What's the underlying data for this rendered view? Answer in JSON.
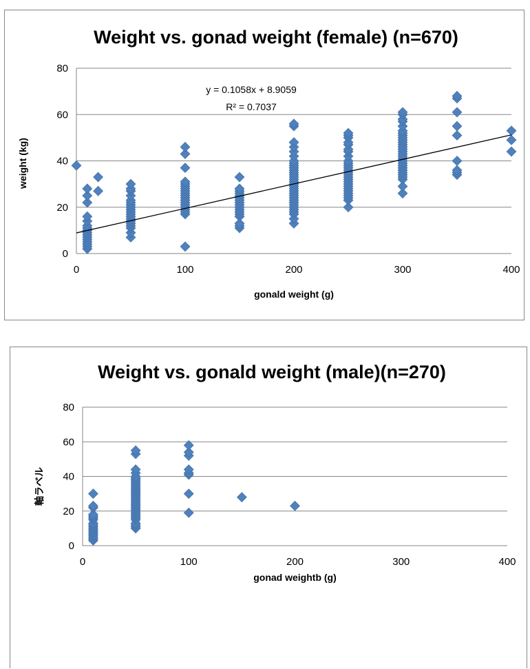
{
  "charts": [
    {
      "type": "scatter",
      "title": "Weight vs. gonad weight (female) (n=670)",
      "xlabel": "gonald weight (g)",
      "ylabel": "weight (kg)",
      "xlim": [
        0,
        400
      ],
      "ylim": [
        0,
        80
      ],
      "xticks": [
        0,
        100,
        200,
        300,
        400
      ],
      "yticks": [
        0,
        20,
        40,
        60,
        80
      ],
      "grid": "horizontal",
      "marker": "diamond",
      "color": "#4f81bd",
      "trendline": {
        "equation": "y = 0.1058x + 8.9059",
        "r_squared": "R² = 0.7037",
        "slope": 0.1058,
        "intercept": 8.9059,
        "x_range": [
          0,
          400
        ]
      },
      "points": [
        [
          0,
          38
        ],
        [
          10,
          2
        ],
        [
          10,
          3
        ],
        [
          10,
          4
        ],
        [
          10,
          5
        ],
        [
          10,
          6
        ],
        [
          10,
          7
        ],
        [
          10,
          8
        ],
        [
          10,
          9
        ],
        [
          10,
          10
        ],
        [
          10,
          11
        ],
        [
          10,
          12
        ],
        [
          10,
          14
        ],
        [
          10,
          16
        ],
        [
          10,
          22
        ],
        [
          10,
          25
        ],
        [
          10,
          28
        ],
        [
          20,
          27
        ],
        [
          20,
          33
        ],
        [
          50,
          7
        ],
        [
          50,
          9
        ],
        [
          50,
          11
        ],
        [
          50,
          12
        ],
        [
          50,
          13
        ],
        [
          50,
          14
        ],
        [
          50,
          15
        ],
        [
          50,
          16
        ],
        [
          50,
          17
        ],
        [
          50,
          18
        ],
        [
          50,
          19
        ],
        [
          50,
          20
        ],
        [
          50,
          21
        ],
        [
          50,
          22
        ],
        [
          50,
          23
        ],
        [
          50,
          25
        ],
        [
          50,
          27
        ],
        [
          50,
          28
        ],
        [
          50,
          30
        ],
        [
          100,
          3
        ],
        [
          100,
          17
        ],
        [
          100,
          18
        ],
        [
          100,
          19
        ],
        [
          100,
          20
        ],
        [
          100,
          21
        ],
        [
          100,
          22
        ],
        [
          100,
          23
        ],
        [
          100,
          24
        ],
        [
          100,
          25
        ],
        [
          100,
          26
        ],
        [
          100,
          27
        ],
        [
          100,
          28
        ],
        [
          100,
          29
        ],
        [
          100,
          30
        ],
        [
          100,
          31
        ],
        [
          100,
          37
        ],
        [
          100,
          43
        ],
        [
          100,
          46
        ],
        [
          150,
          11
        ],
        [
          150,
          12
        ],
        [
          150,
          13
        ],
        [
          150,
          16
        ],
        [
          150,
          17
        ],
        [
          150,
          18
        ],
        [
          150,
          19
        ],
        [
          150,
          20
        ],
        [
          150,
          21
        ],
        [
          150,
          22
        ],
        [
          150,
          23
        ],
        [
          150,
          24
        ],
        [
          150,
          25
        ],
        [
          150,
          26
        ],
        [
          150,
          27
        ],
        [
          150,
          28
        ],
        [
          150,
          33
        ],
        [
          200,
          13
        ],
        [
          200,
          15
        ],
        [
          200,
          17
        ],
        [
          200,
          18
        ],
        [
          200,
          19
        ],
        [
          200,
          20
        ],
        [
          200,
          21
        ],
        [
          200,
          22
        ],
        [
          200,
          23
        ],
        [
          200,
          24
        ],
        [
          200,
          25
        ],
        [
          200,
          26
        ],
        [
          200,
          27
        ],
        [
          200,
          28
        ],
        [
          200,
          29
        ],
        [
          200,
          30
        ],
        [
          200,
          31
        ],
        [
          200,
          32
        ],
        [
          200,
          33
        ],
        [
          200,
          34
        ],
        [
          200,
          35
        ],
        [
          200,
          36
        ],
        [
          200,
          37
        ],
        [
          200,
          38
        ],
        [
          200,
          39
        ],
        [
          200,
          40
        ],
        [
          200,
          42
        ],
        [
          200,
          44
        ],
        [
          200,
          46
        ],
        [
          200,
          48
        ],
        [
          200,
          55
        ],
        [
          200,
          56
        ],
        [
          250,
          20
        ],
        [
          250,
          23
        ],
        [
          250,
          24
        ],
        [
          250,
          25
        ],
        [
          250,
          26
        ],
        [
          250,
          27
        ],
        [
          250,
          28
        ],
        [
          250,
          29
        ],
        [
          250,
          30
        ],
        [
          250,
          31
        ],
        [
          250,
          32
        ],
        [
          250,
          33
        ],
        [
          250,
          34
        ],
        [
          250,
          35
        ],
        [
          250,
          36
        ],
        [
          250,
          37
        ],
        [
          250,
          38
        ],
        [
          250,
          39
        ],
        [
          250,
          40
        ],
        [
          250,
          42
        ],
        [
          250,
          44
        ],
        [
          250,
          45
        ],
        [
          250,
          47
        ],
        [
          250,
          48
        ],
        [
          250,
          50
        ],
        [
          250,
          51
        ],
        [
          250,
          52
        ],
        [
          300,
          26
        ],
        [
          300,
          29
        ],
        [
          300,
          32
        ],
        [
          300,
          33
        ],
        [
          300,
          34
        ],
        [
          300,
          35
        ],
        [
          300,
          36
        ],
        [
          300,
          37
        ],
        [
          300,
          38
        ],
        [
          300,
          39
        ],
        [
          300,
          40
        ],
        [
          300,
          41
        ],
        [
          300,
          42
        ],
        [
          300,
          43
        ],
        [
          300,
          44
        ],
        [
          300,
          45
        ],
        [
          300,
          46
        ],
        [
          300,
          47
        ],
        [
          300,
          48
        ],
        [
          300,
          49
        ],
        [
          300,
          50
        ],
        [
          300,
          51
        ],
        [
          300,
          52
        ],
        [
          300,
          53
        ],
        [
          300,
          55
        ],
        [
          300,
          57
        ],
        [
          300,
          58
        ],
        [
          300,
          60
        ],
        [
          300,
          61
        ],
        [
          350,
          34
        ],
        [
          350,
          35
        ],
        [
          350,
          36
        ],
        [
          350,
          40
        ],
        [
          350,
          51
        ],
        [
          350,
          55
        ],
        [
          350,
          61
        ],
        [
          350,
          67
        ],
        [
          350,
          68
        ],
        [
          400,
          44
        ],
        [
          400,
          49
        ],
        [
          400,
          53
        ]
      ]
    },
    {
      "type": "scatter",
      "title": "Weight vs. gonald weight (male)(n=270)",
      "xlabel": "gonad weightb (g)",
      "ylabel": "軸ラベル",
      "xlim": [
        0,
        400
      ],
      "ylim": [
        0,
        80
      ],
      "xticks": [
        0,
        100,
        200,
        300,
        400
      ],
      "yticks": [
        0,
        20,
        40,
        60,
        80
      ],
      "grid": "horizontal",
      "marker": "diamond",
      "color": "#4f81bd",
      "points": [
        [
          10,
          3
        ],
        [
          10,
          4
        ],
        [
          10,
          5
        ],
        [
          10,
          6
        ],
        [
          10,
          7
        ],
        [
          10,
          8
        ],
        [
          10,
          9
        ],
        [
          10,
          10
        ],
        [
          10,
          11
        ],
        [
          10,
          12
        ],
        [
          10,
          13
        ],
        [
          10,
          15
        ],
        [
          10,
          16
        ],
        [
          10,
          17
        ],
        [
          10,
          18
        ],
        [
          10,
          22
        ],
        [
          10,
          23
        ],
        [
          10,
          30
        ],
        [
          50,
          10
        ],
        [
          50,
          11
        ],
        [
          50,
          12
        ],
        [
          50,
          13
        ],
        [
          50,
          15
        ],
        [
          50,
          16
        ],
        [
          50,
          17
        ],
        [
          50,
          18
        ],
        [
          50,
          19
        ],
        [
          50,
          20
        ],
        [
          50,
          21
        ],
        [
          50,
          22
        ],
        [
          50,
          23
        ],
        [
          50,
          24
        ],
        [
          50,
          25
        ],
        [
          50,
          26
        ],
        [
          50,
          27
        ],
        [
          50,
          28
        ],
        [
          50,
          29
        ],
        [
          50,
          30
        ],
        [
          50,
          31
        ],
        [
          50,
          32
        ],
        [
          50,
          33
        ],
        [
          50,
          34
        ],
        [
          50,
          35
        ],
        [
          50,
          36
        ],
        [
          50,
          37
        ],
        [
          50,
          38
        ],
        [
          50,
          39
        ],
        [
          50,
          40
        ],
        [
          50,
          42
        ],
        [
          50,
          44
        ],
        [
          50,
          53
        ],
        [
          50,
          55
        ],
        [
          100,
          19
        ],
        [
          100,
          30
        ],
        [
          100,
          41
        ],
        [
          100,
          42
        ],
        [
          100,
          44
        ],
        [
          100,
          52
        ],
        [
          100,
          54
        ],
        [
          100,
          58
        ],
        [
          150,
          28
        ],
        [
          200,
          23
        ]
      ]
    }
  ]
}
